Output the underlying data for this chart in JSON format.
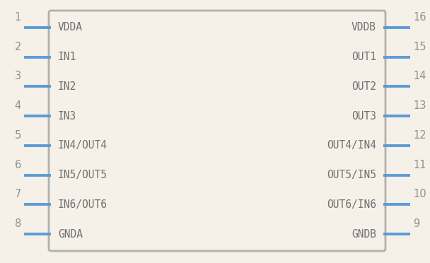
{
  "background_color": "#f5f0e8",
  "box_edge_color": "#b0b0b0",
  "box_face_color": "#f5f0e8",
  "pin_color": "#5b9bd5",
  "text_color": "#707070",
  "pin_num_color": "#909090",
  "left_pins": [
    {
      "num": "1",
      "label": "VDDA"
    },
    {
      "num": "2",
      "label": "IN1"
    },
    {
      "num": "3",
      "label": "IN2"
    },
    {
      "num": "4",
      "label": "IN3"
    },
    {
      "num": "5",
      "label": "IN4/OUT4"
    },
    {
      "num": "6",
      "label": "IN5/OUT5"
    },
    {
      "num": "7",
      "label": "IN6/OUT6"
    },
    {
      "num": "8",
      "label": "GNDA"
    }
  ],
  "right_pins": [
    {
      "num": "16",
      "label": "VDDB"
    },
    {
      "num": "15",
      "label": "OUT1"
    },
    {
      "num": "14",
      "label": "OUT2"
    },
    {
      "num": "13",
      "label": "OUT3"
    },
    {
      "num": "12",
      "label": "OUT4/IN4"
    },
    {
      "num": "11",
      "label": "OUT5/IN5"
    },
    {
      "num": "10",
      "label": "OUT6/IN6"
    },
    {
      "num": "9",
      "label": "GNDB"
    }
  ],
  "figsize": [
    6.08,
    3.72
  ],
  "dpi": 100
}
